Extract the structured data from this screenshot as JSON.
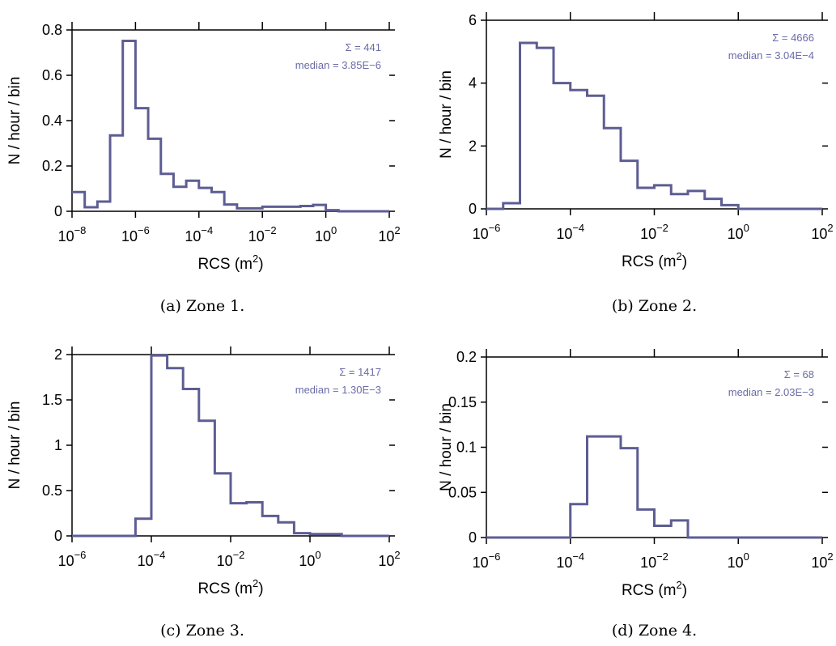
{
  "figure": {
    "style": {
      "line_color": "#5d5d94",
      "annot_color": "#6b6ba8",
      "axis_color": "#000000"
    }
  },
  "chart_data": [
    {
      "type": "histogram",
      "caption": "(a) Zone 1.",
      "xlabel": "RCS (m²)",
      "ylabel": "N / hour / bin",
      "xscale": "log",
      "xlim_exp": [
        -8,
        2
      ],
      "ylim": [
        0,
        0.8
      ],
      "yticks": [
        0,
        0.2,
        0.4,
        0.6,
        0.8
      ],
      "ytick_labels": [
        "0",
        "0.2",
        "0.4",
        "0.6",
        "0.8"
      ],
      "xticks_exp": [
        -8,
        -6,
        -4,
        -2,
        0,
        2
      ],
      "bin_edges_exp": [
        -8,
        -7.6,
        -7.2,
        -6.8,
        -6.4,
        -6,
        -5.6,
        -5.2,
        -4.8,
        -4.4,
        -4,
        -3.6,
        -3.2,
        -2.8,
        -2.4,
        -2,
        -1.6,
        -1.2,
        -0.8,
        -0.4,
        0,
        0.4,
        0.8,
        1.2
      ],
      "values": [
        0.085,
        0.018,
        0.043,
        0.335,
        0.752,
        0.455,
        0.32,
        0.165,
        0.108,
        0.135,
        0.103,
        0.085,
        0.03,
        0.013,
        0.013,
        0.02,
        0.02,
        0.02,
        0.023,
        0.028,
        0.005,
        0.0,
        0.0
      ],
      "sum_label": "Σ = 441",
      "median_label": "median = 3.85E−6"
    },
    {
      "type": "histogram",
      "caption": "(b) Zone 2.",
      "xlabel": "RCS (m²)",
      "ylabel": "N / hour / bin",
      "xscale": "log",
      "xlim_exp": [
        -6,
        2
      ],
      "ylim": [
        0,
        6
      ],
      "yticks": [
        0,
        2,
        4,
        6
      ],
      "ytick_labels": [
        "0",
        "2",
        "4",
        "6"
      ],
      "xticks_exp": [
        -6,
        -4,
        -2,
        0,
        2
      ],
      "bin_edges_exp": [
        -6,
        -5.6,
        -5.2,
        -4.8,
        -4.4,
        -4,
        -3.6,
        -3.2,
        -2.8,
        -2.4,
        -2,
        -1.6,
        -1.2,
        -0.8,
        -0.4,
        0,
        0.4,
        0.8,
        1.2,
        1.6
      ],
      "values": [
        0.0,
        0.18,
        5.28,
        5.12,
        4.0,
        3.78,
        3.6,
        2.57,
        1.53,
        0.67,
        0.75,
        0.47,
        0.57,
        0.32,
        0.12,
        0.0,
        0.0,
        0.0,
        0.0
      ],
      "sum_label": "Σ = 4666",
      "median_label": "median = 3.04E−4"
    },
    {
      "type": "histogram",
      "caption": "(c) Zone 3.",
      "xlabel": "RCS (m²)",
      "ylabel": "N / hour / bin",
      "xscale": "log",
      "xlim_exp": [
        -6,
        2
      ],
      "ylim": [
        0,
        2
      ],
      "yticks": [
        0,
        0.5,
        1,
        1.5,
        2
      ],
      "ytick_labels": [
        "0",
        "0.5",
        "1",
        "1.5",
        "2"
      ],
      "xticks_exp": [
        -6,
        -4,
        -2,
        0,
        2
      ],
      "bin_edges_exp": [
        -6,
        -5.6,
        -5.2,
        -4.8,
        -4.4,
        -4,
        -3.6,
        -3.2,
        -2.8,
        -2.4,
        -2,
        -1.6,
        -1.2,
        -0.8,
        -0.4,
        0,
        0.4,
        0.8,
        1.2,
        1.6
      ],
      "values": [
        0.0,
        0.0,
        0.0,
        0.0,
        0.19,
        1.99,
        1.85,
        1.62,
        1.27,
        0.69,
        0.36,
        0.37,
        0.22,
        0.15,
        0.03,
        0.02,
        0.02,
        0.0,
        0.0
      ],
      "sum_label": "Σ = 1417",
      "median_label": "median = 1.30E−3"
    },
    {
      "type": "histogram",
      "caption": "(d) Zone 4.",
      "xlabel": "RCS (m²)",
      "ylabel": "N / hour / bin",
      "xscale": "log",
      "xlim_exp": [
        -6,
        2
      ],
      "ylim": [
        0,
        0.2
      ],
      "yticks": [
        0,
        0.05,
        0.1,
        0.15,
        0.2
      ],
      "ytick_labels": [
        "0",
        "0.05",
        "0.1",
        "0.15",
        "0.2"
      ],
      "xticks_exp": [
        -6,
        -4,
        -2,
        0,
        2
      ],
      "bin_edges_exp": [
        -6,
        -5.6,
        -5.2,
        -4.8,
        -4.4,
        -4,
        -3.6,
        -3.2,
        -2.8,
        -2.4,
        -2,
        -1.6,
        -1.2,
        -0.8,
        -0.4,
        0,
        0.4,
        0.8,
        1.2,
        1.6
      ],
      "values": [
        0.0,
        0.0,
        0.0,
        0.0,
        0.0,
        0.037,
        0.112,
        0.112,
        0.099,
        0.031,
        0.013,
        0.019,
        0.0,
        0.0,
        0.0,
        0.0,
        0.0,
        0.0,
        0.0
      ],
      "sum_label": "Σ = 68",
      "median_label": "median = 2.03E−3"
    }
  ]
}
